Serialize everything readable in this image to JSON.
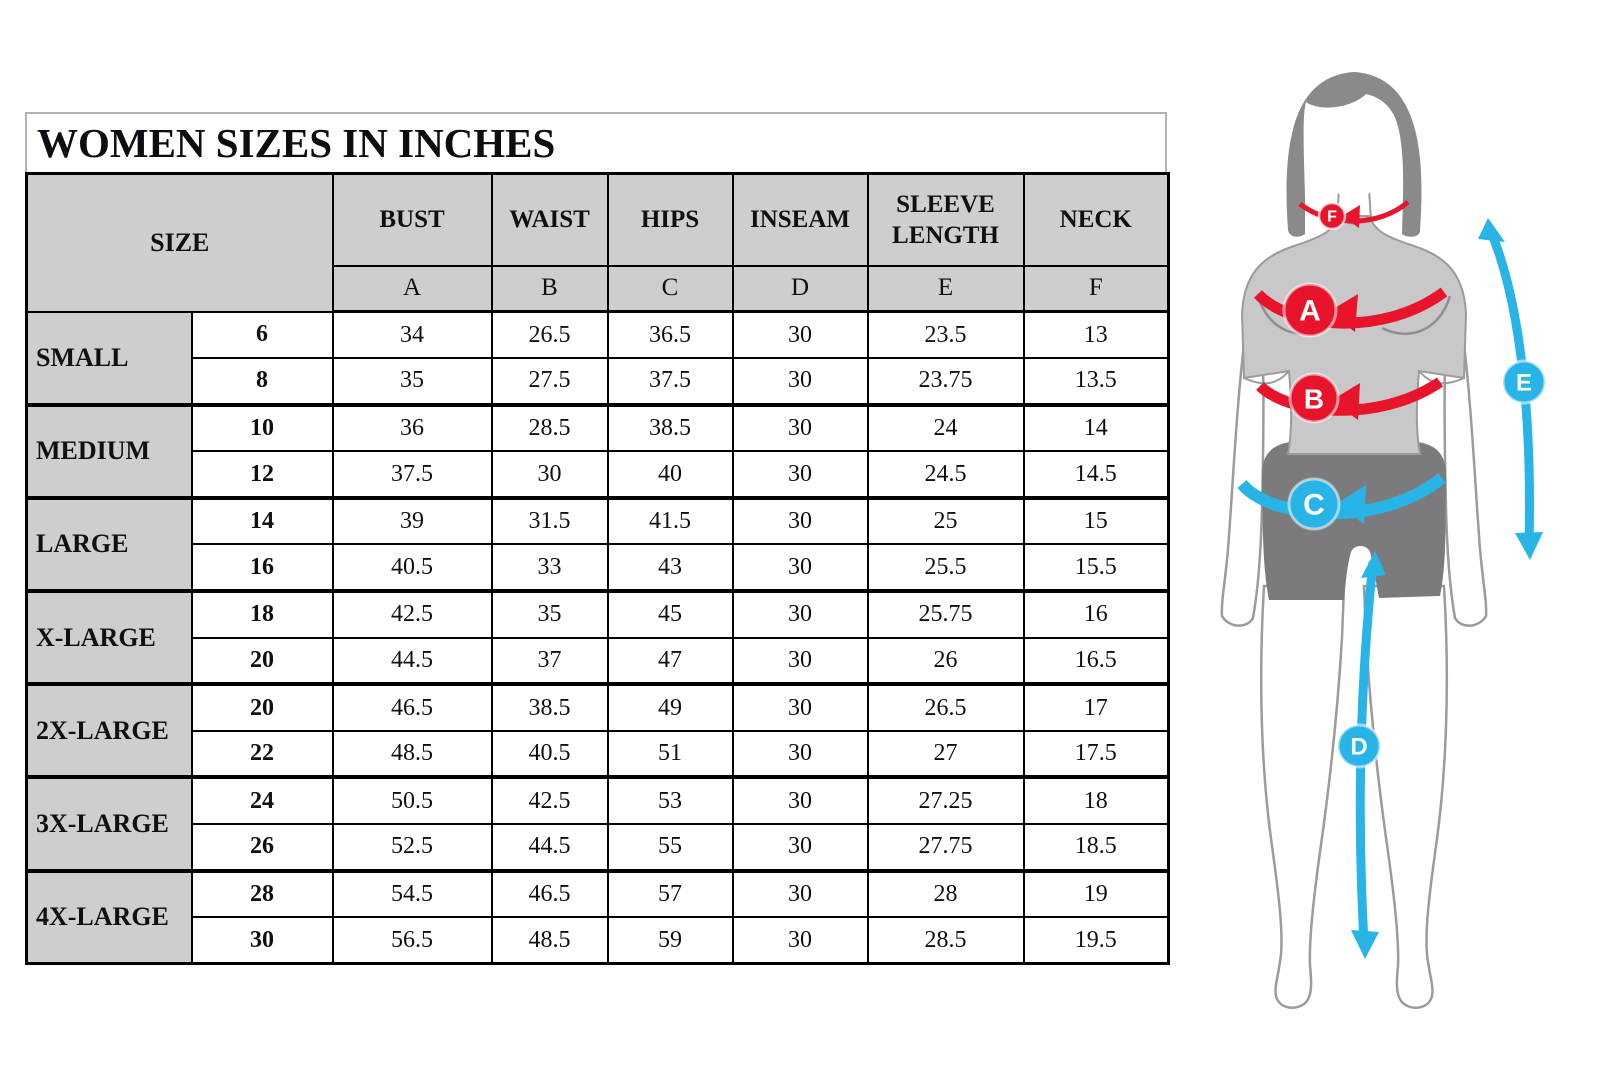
{
  "table": {
    "title": "WOMEN SIZES IN INCHES",
    "size_header": "SIZE",
    "columns": [
      {
        "label": "BUST",
        "letter": "A"
      },
      {
        "label": "WAIST",
        "letter": "B"
      },
      {
        "label": "HIPS",
        "letter": "C"
      },
      {
        "label": "INSEAM",
        "letter": "D"
      },
      {
        "label": "SLEEVE LENGTH",
        "letter": "E"
      },
      {
        "label": "NECK",
        "letter": "F"
      }
    ],
    "groups": [
      {
        "label": "SMALL",
        "rows": [
          [
            "6",
            "34",
            "26.5",
            "36.5",
            "30",
            "23.5",
            "13"
          ],
          [
            "8",
            "35",
            "27.5",
            "37.5",
            "30",
            "23.75",
            "13.5"
          ]
        ]
      },
      {
        "label": "MEDIUM",
        "rows": [
          [
            "10",
            "36",
            "28.5",
            "38.5",
            "30",
            "24",
            "14"
          ],
          [
            "12",
            "37.5",
            "30",
            "40",
            "30",
            "24.5",
            "14.5"
          ]
        ]
      },
      {
        "label": "LARGE",
        "rows": [
          [
            "14",
            "39",
            "31.5",
            "41.5",
            "30",
            "25",
            "15"
          ],
          [
            "16",
            "40.5",
            "33",
            "43",
            "30",
            "25.5",
            "15.5"
          ]
        ]
      },
      {
        "label": "X-LARGE",
        "rows": [
          [
            "18",
            "42.5",
            "35",
            "45",
            "30",
            "25.75",
            "16"
          ],
          [
            "20",
            "44.5",
            "37",
            "47",
            "30",
            "26",
            "16.5"
          ]
        ]
      },
      {
        "label": "2X-LARGE",
        "rows": [
          [
            "20",
            "46.5",
            "38.5",
            "49",
            "30",
            "26.5",
            "17"
          ],
          [
            "22",
            "48.5",
            "40.5",
            "51",
            "30",
            "27",
            "17.5"
          ]
        ]
      },
      {
        "label": "3X-LARGE",
        "rows": [
          [
            "24",
            "50.5",
            "42.5",
            "53",
            "30",
            "27.25",
            "18"
          ],
          [
            "26",
            "52.5",
            "44.5",
            "55",
            "30",
            "27.75",
            "18.5"
          ]
        ]
      },
      {
        "label": "4X-LARGE",
        "rows": [
          [
            "28",
            "54.5",
            "46.5",
            "57",
            "30",
            "28",
            "19"
          ],
          [
            "30",
            "56.5",
            "48.5",
            "59",
            "30",
            "28.5",
            "19.5"
          ]
        ]
      }
    ]
  },
  "figure": {
    "badges": {
      "bust": "A",
      "waist": "B",
      "hips": "C",
      "inseam": "D",
      "sleeve": "E",
      "neck": "F"
    }
  },
  "colors": {
    "red_accent": "#e8142b",
    "blue_accent": "#29b4e8",
    "header_gray": "#cecece",
    "hair_gray": "#8a8a8a",
    "shirt_gray": "#c8c8ca",
    "shorts_gray": "#7b7b7d",
    "outline_gray": "#9b9b9b",
    "border_black": "#000000"
  }
}
